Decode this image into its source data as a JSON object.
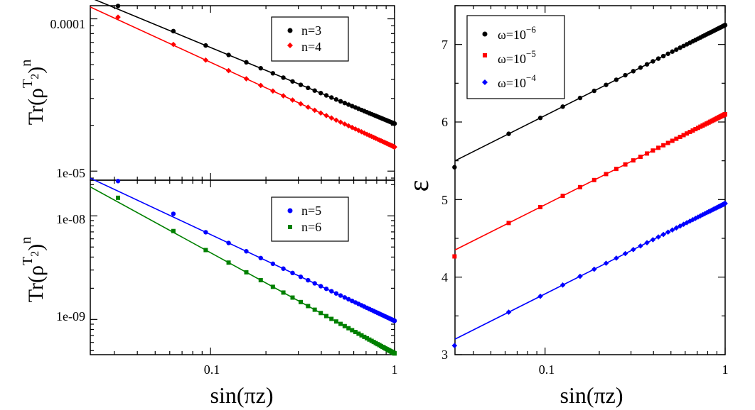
{
  "chart_data": [
    {
      "id": "top-left",
      "type": "scatter",
      "xscale": "log",
      "yscale": "log",
      "xlim": [
        0.0222,
        1.0
      ],
      "ylim": [
        8.72e-06,
        0.000122
      ],
      "yticks": [
        {
          "value": 0.0001,
          "label": "0.0001"
        },
        {
          "value": 1e-05,
          "label": "1e-05"
        }
      ],
      "ylabel": {
        "base": "Tr(ρ",
        "sup_T": "T",
        "sub_2": "2",
        "close": ")",
        "sup_n": "n"
      },
      "series": [
        {
          "name": "n=3",
          "label": "n=3",
          "color": "#000000",
          "marker": "circle",
          "fit_at_1": 2.05e-05,
          "slope": -0.5,
          "scatter_at_first": 1.05
        },
        {
          "name": "n=4",
          "label": "n=4",
          "color": "#ff0000",
          "marker": "diamond",
          "fit_at_1": 1.44e-05,
          "slope": -0.556,
          "scatter_at_first": 1.04
        }
      ]
    },
    {
      "id": "bottom-left",
      "type": "scatter",
      "xscale": "log",
      "yscale": "log",
      "xlim": [
        0.0222,
        1.0
      ],
      "ylim": [
        4.57e-10,
        2.21e-08
      ],
      "yticks": [
        {
          "value": 1e-08,
          "label": "1e-08"
        },
        {
          "value": 1e-09,
          "label": "1e-09"
        }
      ],
      "ylabel": {
        "base": "Tr(ρ",
        "sup_T": "T",
        "sub_2": "2",
        "close": ")",
        "sup_n": "n"
      },
      "xlabel": "sin(πz)",
      "xticks": [
        {
          "value": 0.1,
          "label": "0.1"
        },
        {
          "value": 1,
          "label": "1"
        }
      ],
      "series": [
        {
          "name": "n=5",
          "label": "n=5",
          "color": "#0000ff",
          "marker": "circle",
          "fit_at_1": 9.7e-10,
          "slope": -0.833,
          "scatter_at_first": 1.25
        },
        {
          "name": "n=6",
          "label": "n=6",
          "color": "#008000",
          "marker": "square",
          "fit_at_1": 4.7e-10,
          "slope": -0.972,
          "scatter_at_first": 1.1
        }
      ]
    },
    {
      "id": "right",
      "type": "scatter",
      "xscale": "log",
      "yscale": "linear",
      "xlim": [
        0.0316,
        1.0
      ],
      "ylim": [
        3.0,
        7.5
      ],
      "yticks": [
        {
          "value": 3,
          "label": "3"
        },
        {
          "value": 4,
          "label": "4"
        },
        {
          "value": 5,
          "label": "5"
        },
        {
          "value": 6,
          "label": "6"
        },
        {
          "value": 7,
          "label": "7"
        }
      ],
      "xticks": [
        {
          "value": 0.1,
          "label": "0.1"
        },
        {
          "value": 1,
          "label": "1"
        }
      ],
      "xlabel": "sin(πz)",
      "ylabel": "ε",
      "series": [
        {
          "name": "ω=10^-6",
          "base": "ω=10",
          "exp": "−6",
          "color": "#000000",
          "marker": "circle",
          "fit_at_1": 7.25,
          "fit_at_min": 5.5,
          "scatter_offset_first": -0.08
        },
        {
          "name": "ω=10^-5",
          "base": "ω=10",
          "exp": "−5",
          "color": "#ff0000",
          "marker": "square",
          "fit_at_1": 6.1,
          "fit_at_min": 4.35,
          "scatter_offset_first": -0.08
        },
        {
          "name": "ω=10^-4",
          "base": "ω=10",
          "exp": "−4",
          "color": "#0000ff",
          "marker": "diamond",
          "fit_at_1": 4.95,
          "fit_at_min": 3.2,
          "scatter_offset_first": -0.08
        }
      ]
    }
  ]
}
